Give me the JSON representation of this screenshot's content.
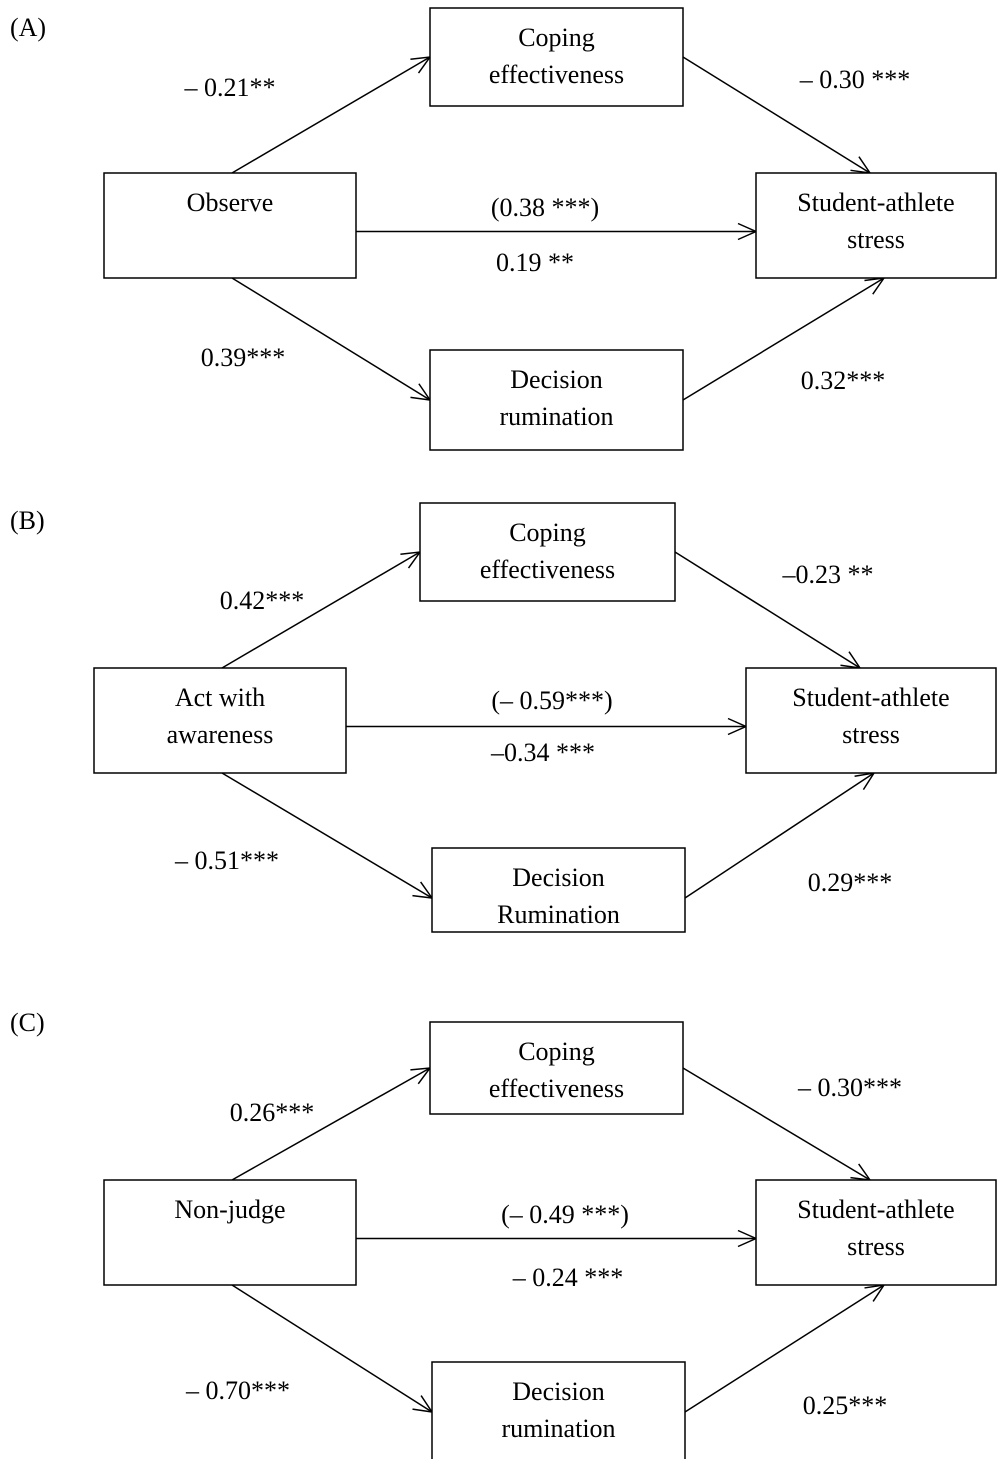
{
  "panels": [
    {
      "label": "(A)",
      "nodes": [
        {
          "lines": [
            "Coping",
            "effectiveness"
          ]
        },
        {
          "lines": [
            "Observe"
          ]
        },
        {
          "lines": [
            "Student-athlete",
            "stress"
          ]
        },
        {
          "lines": [
            "Decision",
            "rumination"
          ]
        }
      ],
      "paths": [
        "– 0.21**",
        "– 0.30 ***",
        "(0.38 ***)",
        "0.19 **",
        "0.39***",
        "0.32***"
      ]
    },
    {
      "label": "(B)",
      "nodes": [
        {
          "lines": [
            "Coping",
            "effectiveness"
          ]
        },
        {
          "lines": [
            "Act with",
            "awareness"
          ]
        },
        {
          "lines": [
            "Student-athlete",
            "stress"
          ]
        },
        {
          "lines": [
            "Decision",
            "Rumination"
          ]
        }
      ],
      "paths": [
        "0.42***",
        "–0.23 **",
        "(– 0.59***)",
        "–0.34 ***",
        "– 0.51***",
        "0.29***"
      ]
    },
    {
      "label": "(C)",
      "nodes": [
        {
          "lines": [
            "Coping",
            "effectiveness"
          ]
        },
        {
          "lines": [
            "Non-judge"
          ]
        },
        {
          "lines": [
            "Student-athlete",
            "stress"
          ]
        },
        {
          "lines": [
            "Decision",
            "rumination"
          ]
        }
      ],
      "paths": [
        "0.26***",
        "– 0.30***",
        "(– 0.49 ***)",
        "– 0.24 ***",
        "– 0.70***",
        "0.25***"
      ]
    }
  ]
}
